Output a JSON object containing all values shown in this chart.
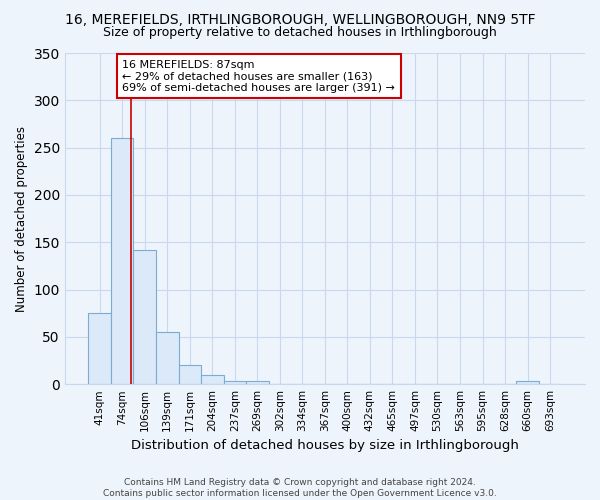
{
  "title": "16, MEREFIELDS, IRTHLINGBOROUGH, WELLINGBOROUGH, NN9 5TF",
  "subtitle": "Size of property relative to detached houses in Irthlingborough",
  "xlabel": "Distribution of detached houses by size in Irthlingborough",
  "ylabel": "Number of detached properties",
  "categories": [
    "41sqm",
    "74sqm",
    "106sqm",
    "139sqm",
    "171sqm",
    "204sqm",
    "237sqm",
    "269sqm",
    "302sqm",
    "334sqm",
    "367sqm",
    "400sqm",
    "432sqm",
    "465sqm",
    "497sqm",
    "530sqm",
    "563sqm",
    "595sqm",
    "628sqm",
    "660sqm",
    "693sqm"
  ],
  "values": [
    75,
    260,
    142,
    55,
    20,
    10,
    3,
    3,
    0,
    0,
    0,
    0,
    0,
    0,
    0,
    0,
    0,
    0,
    0,
    3,
    0
  ],
  "bar_color": "#dce9f8",
  "bar_edge_color": "#7aadd4",
  "background_color": "#eef4fb",
  "plot_bg_color": "#eef4fb",
  "grid_color": "#c8d8ee",
  "annotation_text": "16 MEREFIELDS: 87sqm\n← 29% of detached houses are smaller (163)\n69% of semi-detached houses are larger (391) →",
  "annotation_box_color": "#ffffff",
  "annotation_box_edge_color": "#cc0000",
  "vline_color": "#cc0000",
  "ylim": [
    0,
    350
  ],
  "yticks": [
    0,
    50,
    100,
    150,
    200,
    250,
    300,
    350
  ],
  "footer": "Contains HM Land Registry data © Crown copyright and database right 2024.\nContains public sector information licensed under the Open Government Licence v3.0.",
  "title_fontsize": 10,
  "subtitle_fontsize": 9,
  "xlabel_fontsize": 9.5,
  "ylabel_fontsize": 8.5,
  "tick_fontsize": 7.5,
  "annotation_fontsize": 8,
  "footer_fontsize": 6.5
}
